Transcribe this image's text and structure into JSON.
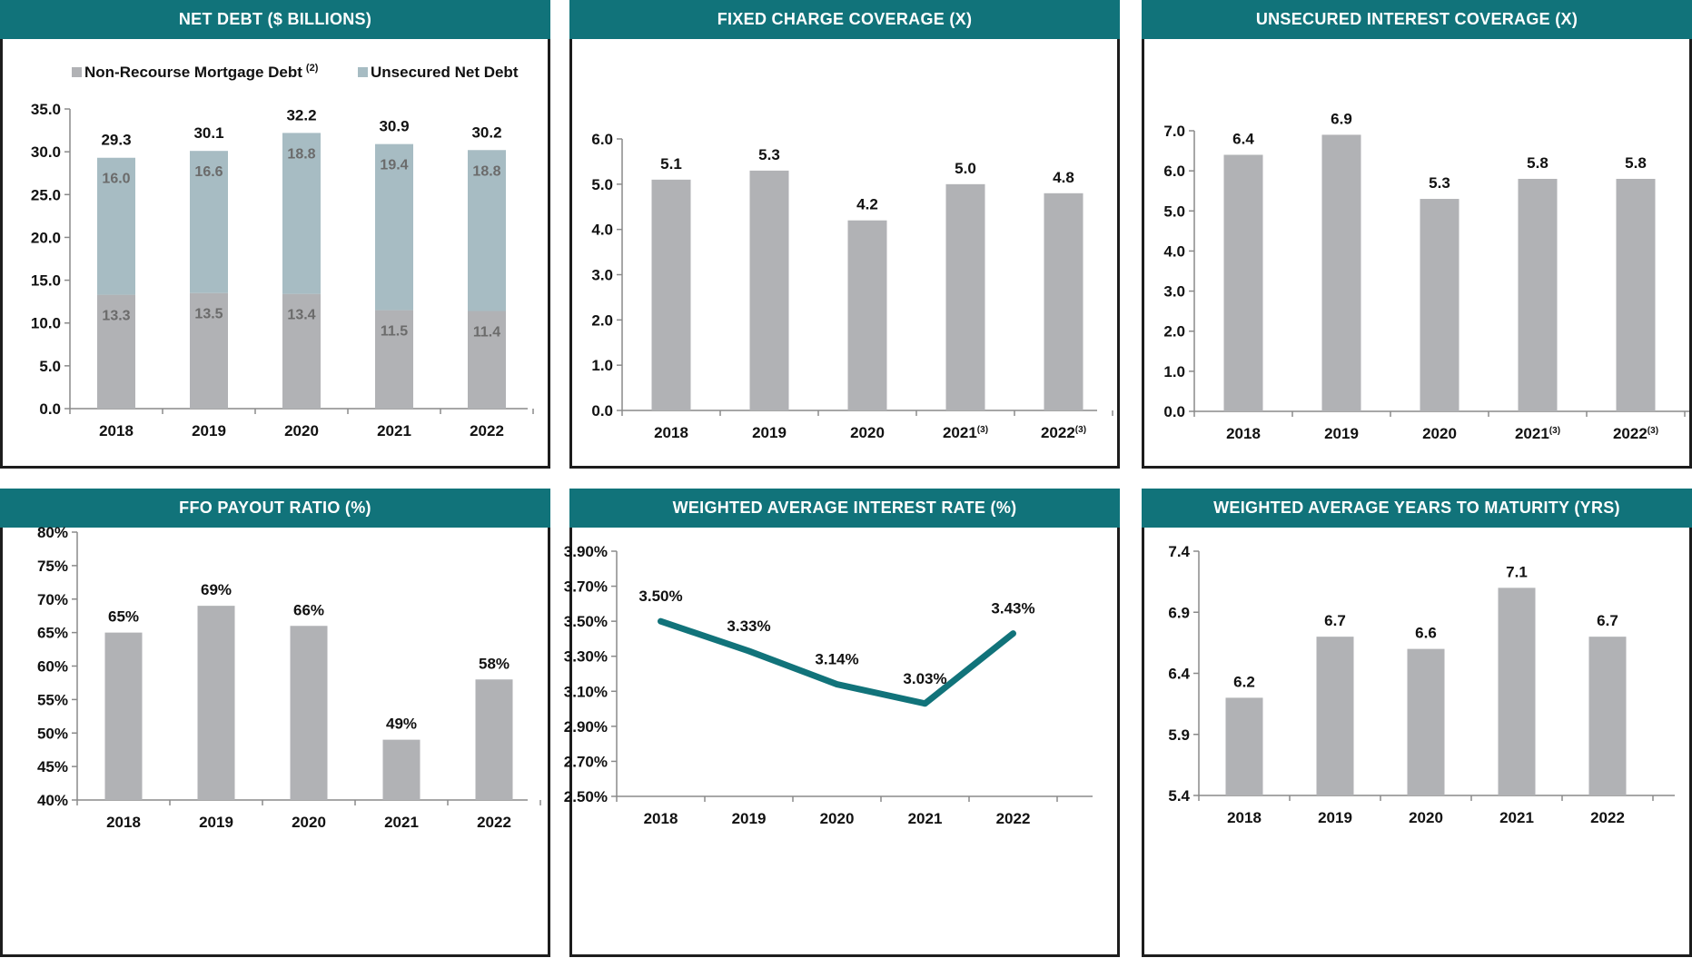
{
  "colors": {
    "header": "#11737a",
    "bar": "#b1b2b5",
    "bar_light": "#a7bcc3",
    "line": "#11737a",
    "axis": "#8a8a8a",
    "text": "#111111",
    "inner_label": "#6b6b6b"
  },
  "chart_data": [
    {
      "type": "bar",
      "stacked": true,
      "title": "NET DEBT ($ BILLIONS)",
      "categories": [
        "2018",
        "2019",
        "2020",
        "2021",
        "2022"
      ],
      "series": [
        {
          "name": "Non-Recourse Mortgage Debt",
          "sup": "(2)",
          "values": [
            13.3,
            13.5,
            13.4,
            11.5,
            11.4
          ],
          "labels": [
            "13.3",
            "13.5",
            "13.4",
            "11.5",
            "11.4"
          ]
        },
        {
          "name": "Unsecured Net Debt",
          "values": [
            16.0,
            16.6,
            18.8,
            19.4,
            18.8
          ],
          "labels": [
            "16.0",
            "16.6",
            "18.8",
            "19.4",
            "18.8"
          ]
        }
      ],
      "totals": [
        "29.3",
        "30.1",
        "32.2",
        "30.9",
        "30.2"
      ],
      "ylim": [
        0,
        35
      ],
      "yticks": [
        "0.0",
        "5.0",
        "10.0",
        "15.0",
        "20.0",
        "25.0",
        "30.0",
        "35.0"
      ],
      "legend": "top"
    },
    {
      "type": "bar",
      "title": "FIXED CHARGE COVERAGE (X)",
      "categories": [
        "2018",
        "2019",
        "2020",
        "2021",
        "2022"
      ],
      "category_sups": [
        "",
        "",
        "",
        "(3)",
        "(3)"
      ],
      "values": [
        5.1,
        5.3,
        4.2,
        5.0,
        4.8
      ],
      "labels": [
        "5.1",
        "5.3",
        "4.2",
        "5.0",
        "4.8"
      ],
      "ylim": [
        0,
        6
      ],
      "yticks": [
        "0.0",
        "1.0",
        "2.0",
        "3.0",
        "4.0",
        "5.0",
        "6.0"
      ]
    },
    {
      "type": "bar",
      "title": "UNSECURED INTEREST COVERAGE (X)",
      "categories": [
        "2018",
        "2019",
        "2020",
        "2021",
        "2022"
      ],
      "category_sups": [
        "",
        "",
        "",
        "(3)",
        "(3)"
      ],
      "values": [
        6.4,
        6.9,
        5.3,
        5.8,
        5.8
      ],
      "labels": [
        "6.4",
        "6.9",
        "5.3",
        "5.8",
        "5.8"
      ],
      "ylim": [
        0,
        7
      ],
      "yticks": [
        "0.0",
        "1.0",
        "2.0",
        "3.0",
        "4.0",
        "5.0",
        "6.0",
        "7.0"
      ]
    },
    {
      "type": "bar",
      "title": "FFO PAYOUT RATIO (%)",
      "categories": [
        "2018",
        "2019",
        "2020",
        "2021",
        "2022"
      ],
      "values": [
        65,
        69,
        66,
        49,
        58
      ],
      "labels": [
        "65%",
        "69%",
        "66%",
        "49%",
        "58%"
      ],
      "ylim": [
        40,
        80
      ],
      "yticks": [
        "40%",
        "45%",
        "50%",
        "55%",
        "60%",
        "65%",
        "70%",
        "75%",
        "80%"
      ]
    },
    {
      "type": "line",
      "title": "WEIGHTED AVERAGE INTEREST RATE (%)",
      "categories": [
        "2018",
        "2019",
        "2020",
        "2021",
        "2022"
      ],
      "values": [
        3.5,
        3.33,
        3.14,
        3.03,
        3.43
      ],
      "labels": [
        "3.50%",
        "3.33%",
        "3.14%",
        "3.03%",
        "3.43%"
      ],
      "ylim": [
        2.5,
        3.9
      ],
      "yticks": [
        "2.50%",
        "2.70%",
        "2.90%",
        "3.10%",
        "3.30%",
        "3.50%",
        "3.70%",
        "3.90%"
      ]
    },
    {
      "type": "bar",
      "title": "WEIGHTED AVERAGE YEARS TO MATURITY (YRS)",
      "categories": [
        "2018",
        "2019",
        "2020",
        "2021",
        "2022"
      ],
      "values": [
        6.2,
        6.7,
        6.6,
        7.1,
        6.7
      ],
      "labels": [
        "6.2",
        "6.7",
        "6.6",
        "7.1",
        "6.7"
      ],
      "ylim": [
        5.4,
        7.4
      ],
      "yticks": [
        "5.4",
        "5.9",
        "6.4",
        "6.9",
        "7.4"
      ]
    }
  ]
}
